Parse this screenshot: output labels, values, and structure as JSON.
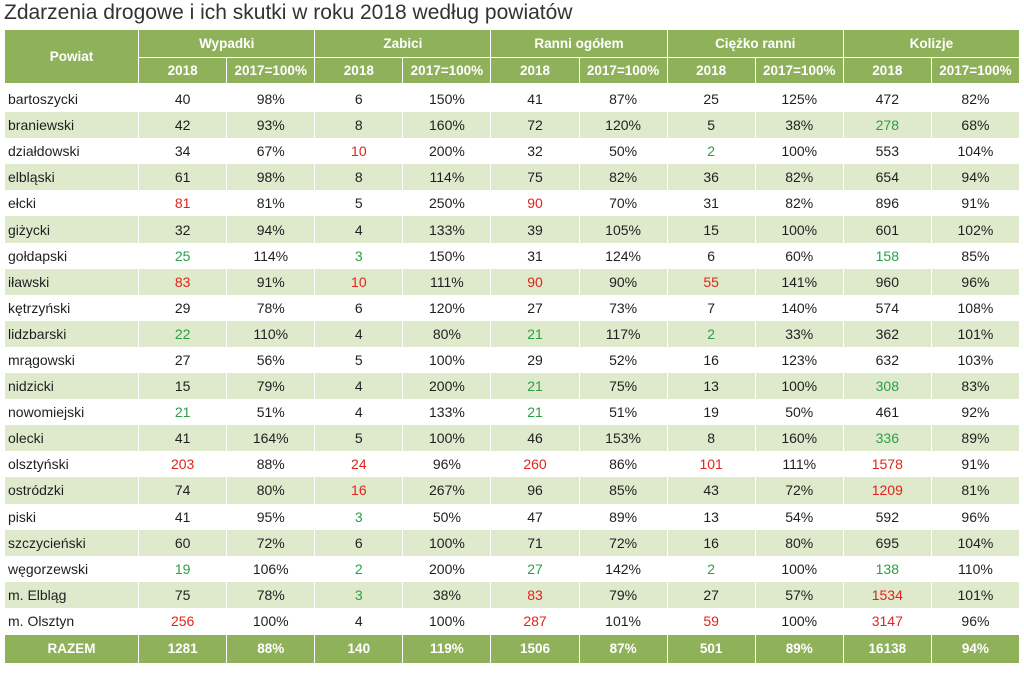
{
  "title": "Zdarzenia drogowe i ich skutki w roku 2018 według powiatów",
  "headers": {
    "powiat": "Powiat",
    "groups": [
      "Wypadki",
      "Zabici",
      "Ranni ogółem",
      "Ciężko ranni",
      "Kolizje"
    ],
    "sub": [
      "2018",
      "2017=100%"
    ]
  },
  "colors": {
    "header_bg": "#8fb15a",
    "stripe": "#dfe9cc",
    "red": "#e1241b",
    "green": "#2aa046"
  },
  "rows": [
    {
      "name": "bartoszycki",
      "cells": [
        "40",
        "98%",
        "6",
        "150%",
        "41",
        "87%",
        "25",
        "125%",
        "472",
        "82%"
      ],
      "hl": [
        "",
        "",
        "",
        "",
        "",
        "",
        "",
        "",
        "",
        ""
      ]
    },
    {
      "name": "braniewski",
      "cells": [
        "42",
        "93%",
        "8",
        "160%",
        "72",
        "120%",
        "5",
        "38%",
        "278",
        "68%"
      ],
      "hl": [
        "",
        "",
        "",
        "",
        "",
        "",
        "",
        "",
        "green",
        ""
      ]
    },
    {
      "name": "działdowski",
      "cells": [
        "34",
        "67%",
        "10",
        "200%",
        "32",
        "50%",
        "2",
        "100%",
        "553",
        "104%"
      ],
      "hl": [
        "",
        "",
        "red",
        "",
        "",
        "",
        "green",
        "",
        "",
        ""
      ]
    },
    {
      "name": "elbląski",
      "cells": [
        "61",
        "98%",
        "8",
        "114%",
        "75",
        "82%",
        "36",
        "82%",
        "654",
        "94%"
      ],
      "hl": [
        "",
        "",
        "",
        "",
        "",
        "",
        "",
        "",
        "",
        ""
      ]
    },
    {
      "name": "ełcki",
      "cells": [
        "81",
        "81%",
        "5",
        "250%",
        "90",
        "70%",
        "31",
        "82%",
        "896",
        "91%"
      ],
      "hl": [
        "red",
        "",
        "",
        "",
        "red",
        "",
        "",
        "",
        "",
        ""
      ]
    },
    {
      "name": "giżycki",
      "cells": [
        "32",
        "94%",
        "4",
        "133%",
        "39",
        "105%",
        "15",
        "100%",
        "601",
        "102%"
      ],
      "hl": [
        "",
        "",
        "",
        "",
        "",
        "",
        "",
        "",
        "",
        ""
      ]
    },
    {
      "name": "gołdapski",
      "cells": [
        "25",
        "114%",
        "3",
        "150%",
        "31",
        "124%",
        "6",
        "60%",
        "158",
        "85%"
      ],
      "hl": [
        "green",
        "",
        "green",
        "",
        "",
        "",
        "",
        "",
        "green",
        ""
      ]
    },
    {
      "name": "iławski",
      "cells": [
        "83",
        "91%",
        "10",
        "111%",
        "90",
        "90%",
        "55",
        "141%",
        "960",
        "96%"
      ],
      "hl": [
        "red",
        "",
        "red",
        "",
        "red",
        "",
        "red",
        "",
        "",
        ""
      ]
    },
    {
      "name": "kętrzyński",
      "cells": [
        "29",
        "78%",
        "6",
        "120%",
        "27",
        "73%",
        "7",
        "140%",
        "574",
        "108%"
      ],
      "hl": [
        "",
        "",
        "",
        "",
        "",
        "",
        "",
        "",
        "",
        ""
      ]
    },
    {
      "name": "lidzbarski",
      "cells": [
        "22",
        "110%",
        "4",
        "80%",
        "21",
        "117%",
        "2",
        "33%",
        "362",
        "101%"
      ],
      "hl": [
        "green",
        "",
        "",
        "",
        "green",
        "",
        "green",
        "",
        "",
        ""
      ]
    },
    {
      "name": "mrągowski",
      "cells": [
        "27",
        "56%",
        "5",
        "100%",
        "29",
        "52%",
        "16",
        "123%",
        "632",
        "103%"
      ],
      "hl": [
        "",
        "",
        "",
        "",
        "",
        "",
        "",
        "",
        "",
        ""
      ]
    },
    {
      "name": "nidzicki",
      "cells": [
        "15",
        "79%",
        "4",
        "200%",
        "21",
        "75%",
        "13",
        "100%",
        "308",
        "83%"
      ],
      "hl": [
        "",
        "",
        "",
        "",
        "green",
        "",
        "",
        "",
        "green",
        ""
      ]
    },
    {
      "name": "nowomiejski",
      "cells": [
        "21",
        "51%",
        "4",
        "133%",
        "21",
        "51%",
        "19",
        "50%",
        "461",
        "92%"
      ],
      "hl": [
        "green",
        "",
        "",
        "",
        "green",
        "",
        "",
        "",
        "",
        ""
      ]
    },
    {
      "name": "olecki",
      "cells": [
        "41",
        "164%",
        "5",
        "100%",
        "46",
        "153%",
        "8",
        "160%",
        "336",
        "89%"
      ],
      "hl": [
        "",
        "",
        "",
        "",
        "",
        "",
        "",
        "",
        "green",
        ""
      ]
    },
    {
      "name": "olsztyński",
      "cells": [
        "203",
        "88%",
        "24",
        "96%",
        "260",
        "86%",
        "101",
        "111%",
        "1578",
        "91%"
      ],
      "hl": [
        "red",
        "",
        "red",
        "",
        "red",
        "",
        "red",
        "",
        "red",
        ""
      ]
    },
    {
      "name": "ostródzki",
      "cells": [
        "74",
        "80%",
        "16",
        "267%",
        "96",
        "85%",
        "43",
        "72%",
        "1209",
        "81%"
      ],
      "hl": [
        "",
        "",
        "red",
        "",
        "",
        "",
        "",
        "",
        "red",
        ""
      ]
    },
    {
      "name": "piski",
      "cells": [
        "41",
        "95%",
        "3",
        "50%",
        "47",
        "89%",
        "13",
        "54%",
        "592",
        "96%"
      ],
      "hl": [
        "",
        "",
        "green",
        "",
        "",
        "",
        "",
        "",
        "",
        ""
      ]
    },
    {
      "name": "szczycieński",
      "cells": [
        "60",
        "72%",
        "6",
        "100%",
        "71",
        "72%",
        "16",
        "80%",
        "695",
        "104%"
      ],
      "hl": [
        "",
        "",
        "",
        "",
        "",
        "",
        "",
        "",
        "",
        ""
      ]
    },
    {
      "name": "węgorzewski",
      "cells": [
        "19",
        "106%",
        "2",
        "200%",
        "27",
        "142%",
        "2",
        "100%",
        "138",
        "110%"
      ],
      "hl": [
        "green",
        "",
        "green",
        "",
        "green",
        "",
        "green",
        "",
        "green",
        ""
      ]
    },
    {
      "name": "m. Elbląg",
      "cells": [
        "75",
        "78%",
        "3",
        "38%",
        "83",
        "79%",
        "27",
        "57%",
        "1534",
        "101%"
      ],
      "hl": [
        "",
        "",
        "green",
        "",
        "red",
        "",
        "",
        "",
        "red",
        ""
      ]
    },
    {
      "name": "m. Olsztyn",
      "cells": [
        "256",
        "100%",
        "4",
        "100%",
        "287",
        "101%",
        "59",
        "100%",
        "3147",
        "96%"
      ],
      "hl": [
        "red",
        "",
        "",
        "",
        "red",
        "",
        "red",
        "",
        "red",
        ""
      ]
    }
  ],
  "total": {
    "name": "RAZEM",
    "cells": [
      "1281",
      "88%",
      "140",
      "119%",
      "1506",
      "87%",
      "501",
      "89%",
      "16138",
      "94%"
    ]
  }
}
